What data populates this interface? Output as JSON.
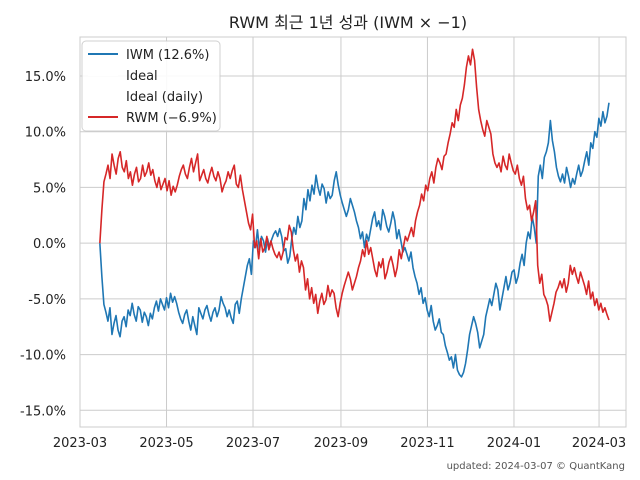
{
  "title": "RWM 최근 1년 성과 (IWM × −1)",
  "footer": "updated: 2024-03-07 © QuantKang",
  "chart_data": {
    "type": "line",
    "title": "RWM 최근 1년 성과 (IWM × −1)",
    "xlabel": "",
    "ylabel": "",
    "x_start": "2023-03-15",
    "x_end": "2024-03-08",
    "xlim": [
      "2023-03-01",
      "2024-03-20"
    ],
    "ylim": [
      -0.165,
      0.185
    ],
    "x_ticks": [
      {
        "date": "2023-03-01",
        "label": "2023-03"
      },
      {
        "date": "2023-05-01",
        "label": "2023-05"
      },
      {
        "date": "2023-07-01",
        "label": "2023-07"
      },
      {
        "date": "2023-09-01",
        "label": "2023-09"
      },
      {
        "date": "2023-11-01",
        "label": "2023-11"
      },
      {
        "date": "2024-01-01",
        "label": "2024-01"
      },
      {
        "date": "2024-03-01",
        "label": "2024-03"
      }
    ],
    "y_ticks": [
      {
        "value": 0.15,
        "label": "15.0%"
      },
      {
        "value": 0.1,
        "label": "10.0%"
      },
      {
        "value": 0.05,
        "label": "5.0%"
      },
      {
        "value": 0.0,
        "label": "0.0%"
      },
      {
        "value": -0.05,
        "label": "-5.0%"
      },
      {
        "value": -0.1,
        "label": "-10.0%"
      },
      {
        "value": -0.15,
        "label": "-15.0%"
      }
    ],
    "grid": true,
    "legend_position": "top-left",
    "series": [
      {
        "name": "IWM (12.6%)",
        "color": "#1f77b4",
        "values": [
          0.0,
          -0.03,
          -0.055,
          -0.062,
          -0.07,
          -0.058,
          -0.082,
          -0.072,
          -0.065,
          -0.078,
          -0.084,
          -0.07,
          -0.066,
          -0.075,
          -0.06,
          -0.065,
          -0.054,
          -0.064,
          -0.07,
          -0.057,
          -0.06,
          -0.071,
          -0.062,
          -0.066,
          -0.074,
          -0.063,
          -0.068,
          -0.058,
          -0.052,
          -0.061,
          -0.05,
          -0.055,
          -0.06,
          -0.049,
          -0.058,
          -0.045,
          -0.053,
          -0.048,
          -0.054,
          -0.062,
          -0.068,
          -0.072,
          -0.064,
          -0.06,
          -0.07,
          -0.078,
          -0.066,
          -0.074,
          -0.082,
          -0.058,
          -0.063,
          -0.068,
          -0.06,
          -0.056,
          -0.064,
          -0.07,
          -0.062,
          -0.058,
          -0.066,
          -0.06,
          -0.048,
          -0.054,
          -0.058,
          -0.066,
          -0.06,
          -0.067,
          -0.072,
          -0.055,
          -0.052,
          -0.063,
          -0.05,
          -0.04,
          -0.03,
          -0.02,
          -0.014,
          -0.028,
          0.002,
          -0.004,
          0.012,
          -0.006,
          0.006,
          0.002,
          -0.008,
          0.004,
          -0.004,
          0.003,
          0.008,
          0.011,
          0.006,
          0.013,
          0.006,
          -0.007,
          -0.005,
          -0.018,
          -0.012,
          0.004,
          0.014,
          0.008,
          0.024,
          0.014,
          0.02,
          0.04,
          0.03,
          0.048,
          0.038,
          0.052,
          0.044,
          0.061,
          0.05,
          0.043,
          0.053,
          0.049,
          0.036,
          0.046,
          0.04,
          0.043,
          0.056,
          0.064,
          0.052,
          0.043,
          0.036,
          0.03,
          0.024,
          0.03,
          0.04,
          0.034,
          0.028,
          0.02,
          0.014,
          0.004,
          0.01,
          -0.004,
          0.008,
          0.002,
          0.012,
          0.022,
          0.028,
          0.015,
          0.02,
          0.012,
          0.03,
          0.024,
          0.015,
          0.01,
          0.018,
          0.028,
          0.02,
          0.004,
          0.012,
          0.002,
          -0.008,
          -0.004,
          -0.01,
          -0.016,
          -0.008,
          -0.022,
          -0.03,
          -0.036,
          -0.046,
          -0.04,
          -0.054,
          -0.049,
          -0.06,
          -0.066,
          -0.056,
          -0.07,
          -0.078,
          -0.074,
          -0.068,
          -0.08,
          -0.082,
          -0.092,
          -0.098,
          -0.105,
          -0.102,
          -0.112,
          -0.1,
          -0.114,
          -0.118,
          -0.12,
          -0.116,
          -0.108,
          -0.096,
          -0.082,
          -0.074,
          -0.066,
          -0.072,
          -0.08,
          -0.094,
          -0.088,
          -0.082,
          -0.066,
          -0.058,
          -0.05,
          -0.056,
          -0.046,
          -0.036,
          -0.042,
          -0.06,
          -0.05,
          -0.04,
          -0.03,
          -0.042,
          -0.036,
          -0.026,
          -0.024,
          -0.036,
          -0.03,
          -0.018,
          -0.01,
          -0.02,
          0.0,
          0.01,
          0.004,
          0.024,
          0.014,
          0.0,
          0.06,
          0.07,
          0.058,
          0.077,
          0.082,
          0.09,
          0.11,
          0.092,
          0.082,
          0.068,
          0.06,
          0.055,
          0.062,
          0.054,
          0.068,
          0.06,
          0.05,
          0.058,
          0.053,
          0.062,
          0.07,
          0.06,
          0.065,
          0.074,
          0.082,
          0.07,
          0.09,
          0.085,
          0.1,
          0.095,
          0.112,
          0.105,
          0.118,
          0.108,
          0.114,
          0.126
        ]
      },
      {
        "name": "Ideal",
        "color": "#ffffff",
        "values": []
      },
      {
        "name": "Ideal (daily)",
        "color": "#ffffff",
        "values": []
      },
      {
        "name": "RWM (−6.9%)",
        "color": "#d62728",
        "values": [
          0.0,
          0.03,
          0.055,
          0.062,
          0.07,
          0.058,
          0.08,
          0.07,
          0.062,
          0.076,
          0.082,
          0.068,
          0.064,
          0.074,
          0.058,
          0.064,
          0.052,
          0.062,
          0.068,
          0.055,
          0.058,
          0.07,
          0.06,
          0.064,
          0.072,
          0.061,
          0.066,
          0.056,
          0.05,
          0.059,
          0.048,
          0.053,
          0.058,
          0.047,
          0.056,
          0.043,
          0.051,
          0.046,
          0.052,
          0.06,
          0.066,
          0.07,
          0.062,
          0.058,
          0.068,
          0.076,
          0.064,
          0.072,
          0.08,
          0.056,
          0.061,
          0.066,
          0.058,
          0.054,
          0.062,
          0.068,
          0.06,
          0.056,
          0.064,
          0.058,
          0.046,
          0.052,
          0.056,
          0.064,
          0.058,
          0.065,
          0.07,
          0.053,
          0.05,
          0.061,
          0.048,
          0.038,
          0.028,
          0.018,
          0.012,
          0.026,
          -0.004,
          0.002,
          -0.014,
          0.004,
          -0.008,
          -0.004,
          0.006,
          -0.006,
          0.002,
          -0.005,
          -0.01,
          -0.013,
          -0.008,
          -0.015,
          -0.008,
          0.005,
          0.003,
          0.016,
          0.01,
          -0.006,
          -0.016,
          -0.01,
          -0.026,
          -0.016,
          -0.022,
          -0.042,
          -0.032,
          -0.05,
          -0.04,
          -0.054,
          -0.046,
          -0.063,
          -0.052,
          -0.045,
          -0.055,
          -0.051,
          -0.038,
          -0.048,
          -0.042,
          -0.045,
          -0.058,
          -0.066,
          -0.054,
          -0.045,
          -0.038,
          -0.032,
          -0.026,
          -0.032,
          -0.042,
          -0.036,
          -0.03,
          -0.022,
          -0.016,
          -0.006,
          -0.012,
          0.002,
          -0.01,
          -0.004,
          -0.014,
          -0.024,
          -0.03,
          -0.017,
          -0.022,
          -0.014,
          -0.032,
          -0.026,
          -0.017,
          -0.012,
          -0.02,
          -0.03,
          -0.022,
          -0.006,
          -0.014,
          -0.004,
          0.006,
          0.002,
          0.008,
          0.014,
          0.006,
          0.02,
          0.028,
          0.034,
          0.044,
          0.038,
          0.052,
          0.047,
          0.058,
          0.064,
          0.054,
          0.068,
          0.076,
          0.072,
          0.066,
          0.078,
          0.08,
          0.09,
          0.098,
          0.108,
          0.104,
          0.12,
          0.11,
          0.124,
          0.13,
          0.142,
          0.158,
          0.168,
          0.16,
          0.174,
          0.164,
          0.14,
          0.12,
          0.11,
          0.102,
          0.096,
          0.11,
          0.104,
          0.098,
          0.08,
          0.072,
          0.068,
          0.072,
          0.064,
          0.078,
          0.07,
          0.066,
          0.08,
          0.072,
          0.065,
          0.062,
          0.07,
          0.058,
          0.052,
          0.06,
          0.04,
          0.03,
          0.034,
          0.02,
          0.028,
          0.038,
          -0.02,
          -0.036,
          -0.028,
          -0.046,
          -0.05,
          -0.056,
          -0.07,
          -0.062,
          -0.054,
          -0.044,
          -0.04,
          -0.034,
          -0.04,
          -0.032,
          -0.044,
          -0.036,
          -0.02,
          -0.028,
          -0.022,
          -0.03,
          -0.036,
          -0.026,
          -0.032,
          -0.038,
          -0.046,
          -0.034,
          -0.05,
          -0.044,
          -0.056,
          -0.05,
          -0.06,
          -0.054,
          -0.062,
          -0.058,
          -0.064,
          -0.069
        ]
      }
    ]
  }
}
